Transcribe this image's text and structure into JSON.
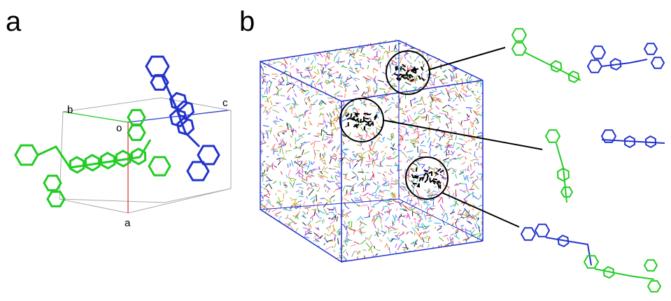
{
  "panel_a": {
    "label": "a",
    "axis_labels": [
      "b",
      "c",
      "o",
      "a"
    ]
  },
  "panel_b": {
    "label": "b"
  }
}
